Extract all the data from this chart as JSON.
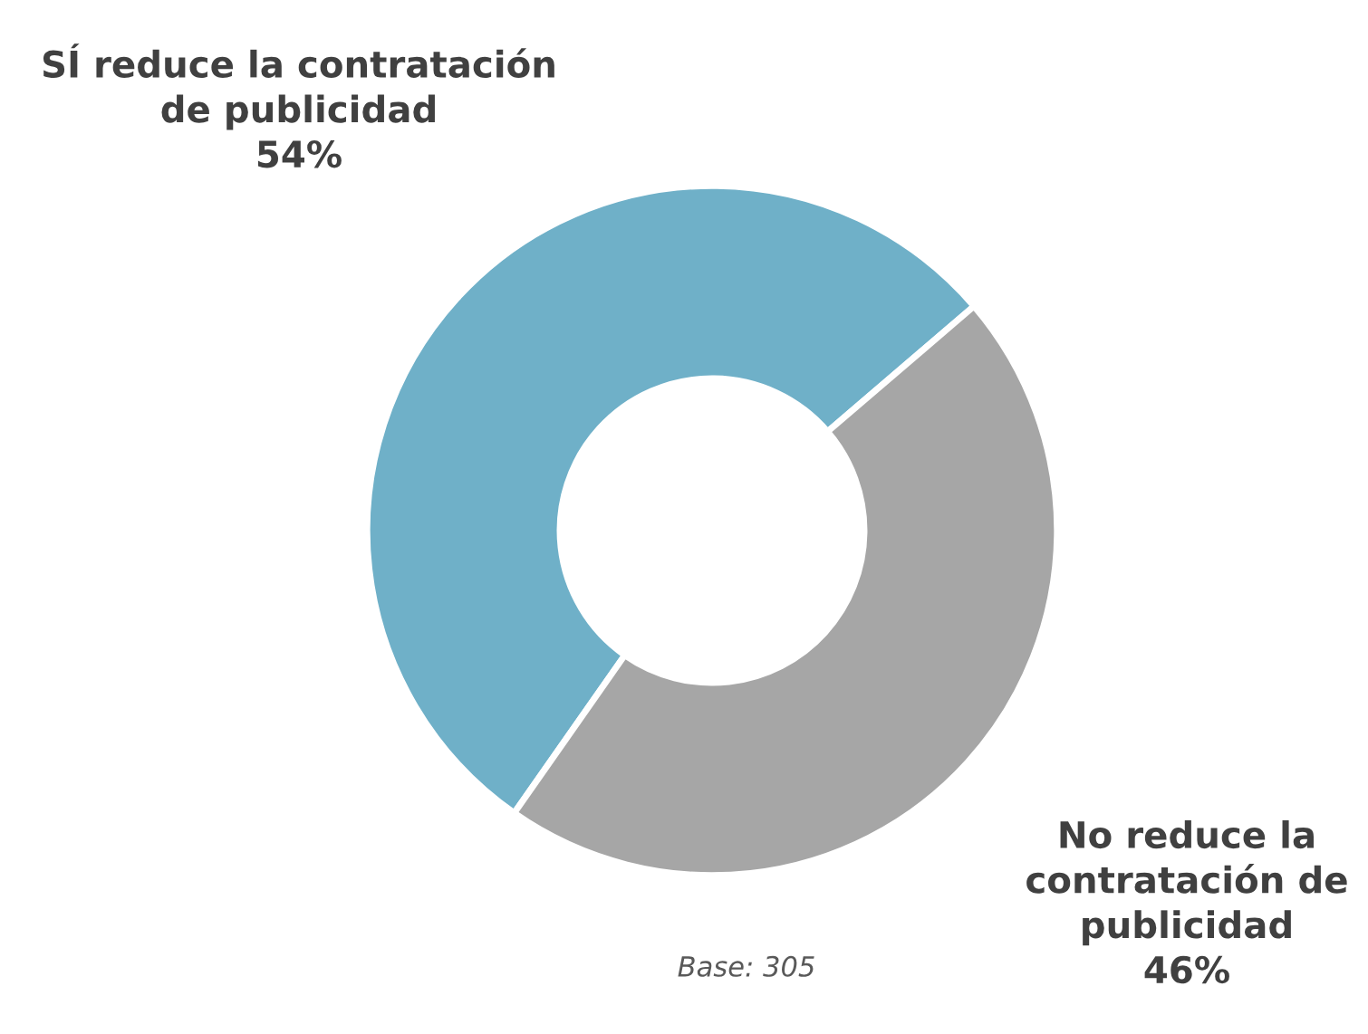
{
  "chart_data": {
    "type": "donut",
    "categories": [
      "SÍ reduce la contratación\nde publicidad",
      "No reduce la\ncontratación de\npublicidad"
    ],
    "values": [
      54,
      46
    ],
    "colors": [
      "#6fb0c8",
      "#a6a6a6"
    ],
    "value_labels": [
      "54%",
      "46%"
    ],
    "legend": false,
    "annotations": [
      "Base: 305"
    ]
  }
}
